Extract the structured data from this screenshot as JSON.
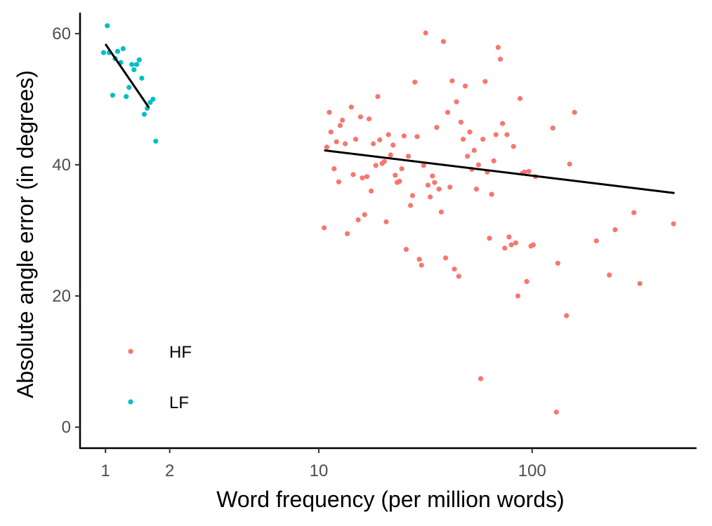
{
  "chart_data": {
    "type": "scatter",
    "xlabel": "Word frequency (per million words)",
    "ylabel": "Absolute angle error (in degrees)",
    "x_scale": "log10",
    "xlim": [
      0.76,
      590
    ],
    "ylim": [
      -3.2,
      63.2
    ],
    "x_ticks": [
      1,
      2,
      10,
      100
    ],
    "y_ticks": [
      0,
      20,
      40,
      60
    ],
    "grid": false,
    "legend": {
      "position": "bottom-left inside",
      "entries": [
        "HF",
        "LF"
      ]
    },
    "colors": {
      "HF": "#f8766d",
      "LF": "#00bfc4",
      "fit": "#000000",
      "axis": "#000000"
    },
    "series": [
      {
        "name": "HF",
        "points": [
          [
            10.6,
            30.4
          ],
          [
            10.9,
            42.7
          ],
          [
            11.2,
            48.0
          ],
          [
            11.4,
            45.0
          ],
          [
            11.8,
            39.4
          ],
          [
            12.1,
            43.5
          ],
          [
            12.4,
            37.4
          ],
          [
            12.6,
            46.0
          ],
          [
            12.9,
            46.8
          ],
          [
            13.3,
            43.2
          ],
          [
            13.6,
            29.5
          ],
          [
            14.2,
            48.8
          ],
          [
            14.5,
            38.5
          ],
          [
            14.9,
            43.9
          ],
          [
            15.3,
            31.6
          ],
          [
            15.7,
            47.3
          ],
          [
            16.0,
            38.0
          ],
          [
            16.4,
            32.4
          ],
          [
            16.8,
            38.2
          ],
          [
            17.2,
            47.0
          ],
          [
            17.6,
            36.0
          ],
          [
            18.0,
            43.2
          ],
          [
            18.5,
            39.9
          ],
          [
            18.9,
            50.4
          ],
          [
            19.3,
            43.8
          ],
          [
            19.8,
            40.2
          ],
          [
            20.3,
            40.5
          ],
          [
            20.7,
            31.3
          ],
          [
            21.2,
            44.6
          ],
          [
            21.7,
            41.5
          ],
          [
            22.3,
            43.0
          ],
          [
            22.8,
            38.4
          ],
          [
            23.3,
            37.3
          ],
          [
            23.9,
            37.5
          ],
          [
            24.5,
            39.4
          ],
          [
            25.1,
            44.4
          ],
          [
            25.7,
            27.1
          ],
          [
            26.3,
            41.3
          ],
          [
            26.9,
            33.8
          ],
          [
            27.5,
            35.3
          ],
          [
            28.2,
            52.6
          ],
          [
            28.9,
            44.3
          ],
          [
            29.6,
            25.6
          ],
          [
            30.3,
            24.7
          ],
          [
            31.0,
            39.9
          ],
          [
            31.7,
            60.1
          ],
          [
            32.5,
            36.9
          ],
          [
            33.3,
            35.1
          ],
          [
            34.1,
            38.3
          ],
          [
            34.9,
            37.3
          ],
          [
            35.7,
            45.7
          ],
          [
            36.6,
            36.3
          ],
          [
            37.5,
            32.8
          ],
          [
            38.4,
            58.8
          ],
          [
            39.3,
            25.8
          ],
          [
            40.2,
            48.0
          ],
          [
            41.2,
            36.6
          ],
          [
            42.2,
            52.8
          ],
          [
            43.2,
            24.1
          ],
          [
            44.2,
            49.6
          ],
          [
            45.3,
            23.0
          ],
          [
            46.4,
            46.5
          ],
          [
            47.5,
            43.9
          ],
          [
            48.6,
            52.0
          ],
          [
            49.8,
            41.3
          ],
          [
            51.0,
            45.0
          ],
          [
            52.2,
            39.3
          ],
          [
            53.5,
            42.2
          ],
          [
            54.8,
            36.3
          ],
          [
            56.1,
            40.0
          ],
          [
            57.4,
            7.4
          ],
          [
            58.8,
            43.9
          ],
          [
            60.2,
            52.7
          ],
          [
            61.6,
            38.9
          ],
          [
            63.1,
            28.8
          ],
          [
            64.6,
            35.5
          ],
          [
            66.1,
            40.6
          ],
          [
            67.7,
            44.6
          ],
          [
            69.3,
            57.9
          ],
          [
            71.0,
            56.1
          ],
          [
            72.7,
            46.3
          ],
          [
            74.4,
            27.3
          ],
          [
            76.2,
            44.6
          ],
          [
            78.0,
            29.0
          ],
          [
            79.9,
            27.8
          ],
          [
            81.8,
            42.8
          ],
          [
            83.8,
            28.1
          ],
          [
            85.8,
            20.0
          ],
          [
            87.8,
            50.1
          ],
          [
            89.9,
            38.7
          ],
          [
            92.1,
            38.9
          ],
          [
            94.3,
            22.2
          ],
          [
            96.5,
            39.0
          ],
          [
            98.8,
            27.6
          ],
          [
            101.2,
            27.8
          ],
          [
            103.6,
            38.2
          ],
          [
            125.0,
            45.6
          ],
          [
            130.0,
            2.3
          ],
          [
            132.0,
            25.0
          ],
          [
            145.0,
            17.0
          ],
          [
            150.0,
            40.1
          ],
          [
            158.0,
            48.0
          ],
          [
            200.0,
            28.4
          ],
          [
            230.0,
            23.2
          ],
          [
            245.0,
            30.1
          ],
          [
            300.0,
            32.7
          ],
          [
            320.0,
            21.9
          ],
          [
            460.0,
            31.0
          ]
        ]
      },
      {
        "name": "LF",
        "points": [
          [
            0.98,
            57.1
          ],
          [
            1.02,
            61.2
          ],
          [
            1.04,
            57.1
          ],
          [
            1.08,
            50.6
          ],
          [
            1.11,
            56.2
          ],
          [
            1.14,
            57.3
          ],
          [
            1.18,
            55.6
          ],
          [
            1.21,
            57.7
          ],
          [
            1.25,
            50.4
          ],
          [
            1.29,
            51.8
          ],
          [
            1.33,
            55.3
          ],
          [
            1.36,
            54.5
          ],
          [
            1.4,
            55.3
          ],
          [
            1.44,
            56.0
          ],
          [
            1.48,
            53.2
          ],
          [
            1.52,
            47.7
          ],
          [
            1.57,
            48.6
          ],
          [
            1.62,
            49.5
          ],
          [
            1.67,
            50.0
          ],
          [
            1.72,
            43.6
          ]
        ]
      }
    ],
    "fit_lines": [
      {
        "series": "LF",
        "from": [
          1.0,
          58.4
        ],
        "to": [
          1.6,
          48.7
        ]
      },
      {
        "series": "HF",
        "from": [
          10.6,
          42.2
        ],
        "to": [
          465.0,
          35.7
        ]
      }
    ]
  }
}
